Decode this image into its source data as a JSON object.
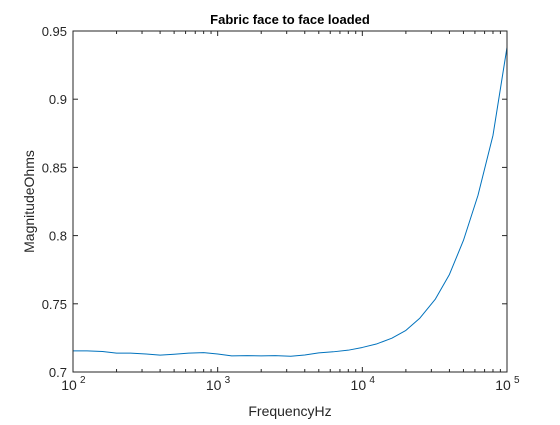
{
  "chart_data": {
    "type": "line",
    "title": "Fabric face to face loaded",
    "xlabel": "FrequencyHz",
    "ylabel": "MagnitudeOhms",
    "xscale": "log",
    "xlim": [
      100,
      100000
    ],
    "ylim": [
      0.7,
      0.95
    ],
    "grid": false,
    "box": true,
    "x_ticks": [
      {
        "value": 100,
        "base": "10",
        "exp": "2"
      },
      {
        "value": 1000,
        "base": "10",
        "exp": "3"
      },
      {
        "value": 10000,
        "base": "10",
        "exp": "4"
      },
      {
        "value": 100000,
        "base": "10",
        "exp": "5"
      }
    ],
    "y_ticks": [
      {
        "value": 0.7,
        "label": "0.7"
      },
      {
        "value": 0.75,
        "label": "0.75"
      },
      {
        "value": 0.8,
        "label": "0.8"
      },
      {
        "value": 0.85,
        "label": "0.85"
      },
      {
        "value": 0.9,
        "label": "0.9"
      },
      {
        "value": 0.95,
        "label": "0.95"
      }
    ],
    "series": [
      {
        "color": "#0072BD",
        "x": [
          100,
          125,
          160,
          200,
          250,
          320,
          400,
          500,
          630,
          800,
          1000,
          1250,
          1600,
          2000,
          2500,
          3200,
          4000,
          5000,
          6300,
          8000,
          10000,
          12500,
          16000,
          20000,
          25000,
          32000,
          40000,
          50000,
          63000,
          80000,
          100000
        ],
        "y": [
          0.7155,
          0.7155,
          0.715,
          0.7138,
          0.7138,
          0.7132,
          0.7124,
          0.713,
          0.7138,
          0.7142,
          0.7132,
          0.7118,
          0.712,
          0.7118,
          0.712,
          0.7115,
          0.7125,
          0.714,
          0.7148,
          0.716,
          0.718,
          0.7205,
          0.7248,
          0.7305,
          0.7395,
          0.7535,
          0.7715,
          0.7965,
          0.8295,
          0.8735,
          0.938
        ]
      }
    ]
  }
}
